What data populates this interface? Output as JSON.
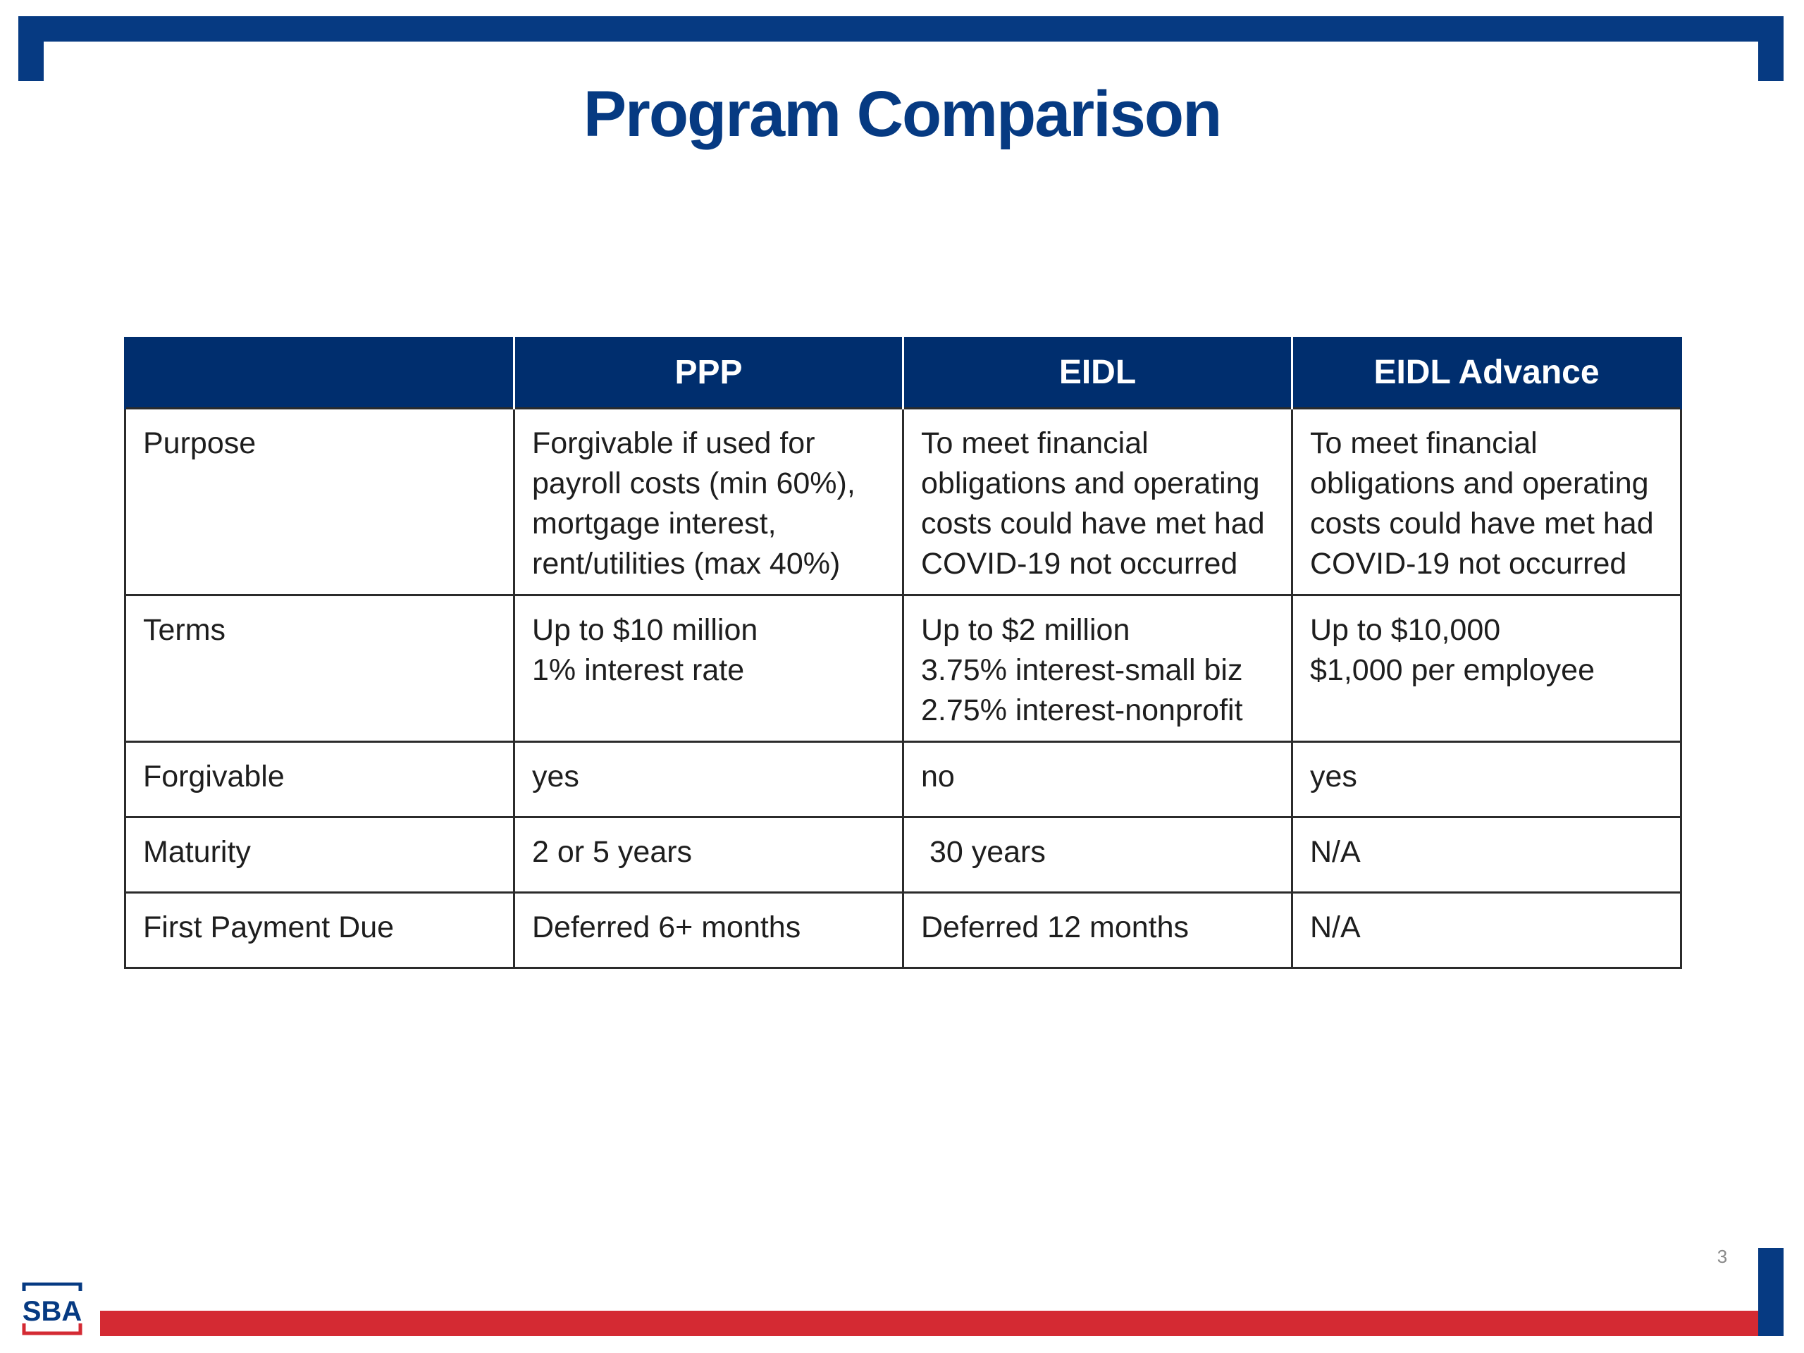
{
  "slide": {
    "title": "Program Comparison",
    "page_number": "3"
  },
  "table": {
    "headers": [
      "",
      "PPP",
      "EIDL",
      "EIDL Advance"
    ],
    "rows": [
      {
        "label": "Purpose",
        "ppp": "Forgivable if used for\npayroll costs (min 60%),\nmortgage interest,\nrent/utilities (max 40%)",
        "eidl": "To meet financial\nobligations and operating\ncosts could have met had\nCOVID-19 not occurred",
        "advance": "To meet financial\nobligations and operating\ncosts could have met had\nCOVID-19 not occurred"
      },
      {
        "label": "Terms",
        "ppp": "Up to $10 million\n1% interest rate",
        "eidl": "Up to $2 million\n3.75% interest-small biz\n2.75% interest-nonprofit",
        "advance": "Up to $10,000\n$1,000 per employee"
      },
      {
        "label": "Forgivable",
        "ppp": "yes",
        "eidl": "no",
        "advance": "yes"
      },
      {
        "label": "Maturity",
        "ppp": "2 or 5 years",
        "eidl": " 30 years",
        "advance": "N/A"
      },
      {
        "label": "First Payment Due",
        "ppp": "Deferred 6+ months",
        "eidl": "Deferred 12 months",
        "advance": "N/A"
      }
    ]
  },
  "logo": {
    "text": "SBA",
    "icon": "sba-logo-icon"
  },
  "colors": {
    "navy": "#063a82",
    "header_navy": "#002e6e",
    "red": "#d42a33"
  }
}
